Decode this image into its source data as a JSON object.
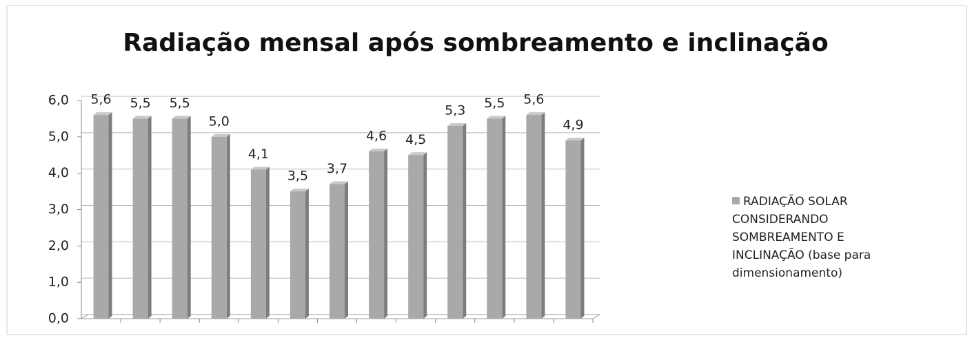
{
  "chart_data": {
    "type": "bar",
    "title": "Radiação mensal após sombreamento e inclinação",
    "categories": [
      null,
      null,
      null,
      null,
      null,
      null,
      null,
      null,
      null,
      null,
      null,
      null,
      null
    ],
    "series": [
      {
        "name": "RADIAÇÃO SOLAR CONSIDERANDO SOMBREAMENTO E INCLINAÇÃO (base para dimensionamento)",
        "color": "#a9a9a9",
        "values": [
          5.6,
          5.5,
          5.5,
          5.0,
          4.1,
          3.5,
          3.7,
          4.6,
          4.5,
          5.3,
          5.5,
          5.6,
          4.9
        ],
        "value_labels": [
          "5,6",
          "5,5",
          "5,5",
          "5,0",
          "4,1",
          "3,5",
          "3,7",
          "4,6",
          "4,5",
          "5,3",
          "5,5",
          "5,6",
          "4,9"
        ]
      }
    ],
    "ylim": [
      0,
      6
    ],
    "yticks": [
      {
        "value": 0,
        "label": "0,0"
      },
      {
        "value": 1,
        "label": "1,0"
      },
      {
        "value": 2,
        "label": "2,0"
      },
      {
        "value": 3,
        "label": "3,0"
      },
      {
        "value": 4,
        "label": "4,0"
      },
      {
        "value": 5,
        "label": "5,0"
      },
      {
        "value": 6,
        "label": "6,0"
      }
    ],
    "grid": true,
    "legend": "right"
  }
}
